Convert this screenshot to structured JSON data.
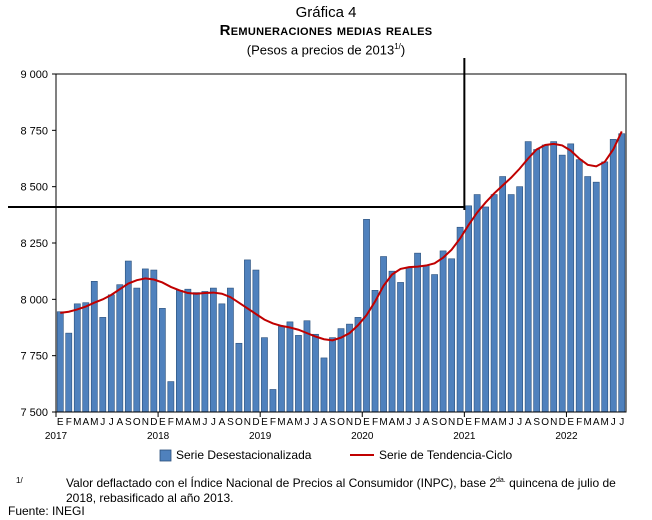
{
  "header": {
    "number": "Gráfica 4",
    "title": "Remuneraciones medias reales",
    "subtitle_main": "(Pesos a precios de 2013",
    "subtitle_sup": "1/",
    "subtitle_end": ")"
  },
  "footnote": {
    "mark": "1/",
    "text_a": "Valor deflactado con el Índice Nacional de Precios al Consumidor (INPC), base 2",
    "text_sup": "da.",
    "text_b": " quincena de julio de 2018, rebasificado al año 2013."
  },
  "source": "Fuente: INEGI",
  "chart_data": {
    "type": "bar",
    "ylim": [
      7500,
      9000
    ],
    "yticks": [
      7500,
      7750,
      8000,
      8250,
      8500,
      8750,
      9000
    ],
    "ytick_labels": [
      "7 500",
      "7 750",
      "8 000",
      "8 250",
      "8 500",
      "8 750",
      "9 000"
    ],
    "month_letters": [
      "E",
      "F",
      "M",
      "A",
      "M",
      "J",
      "J",
      "A",
      "S",
      "O",
      "N",
      "D",
      "E",
      "F",
      "M",
      "A",
      "M",
      "J",
      "J",
      "A",
      "S",
      "O",
      "N",
      "D",
      "E",
      "F",
      "M",
      "A",
      "M",
      "J",
      "J",
      "A",
      "S",
      "O",
      "N",
      "D",
      "E",
      "F",
      "M",
      "A",
      "M",
      "J",
      "J",
      "A",
      "S",
      "O",
      "N",
      "D",
      "E",
      "F",
      "M",
      "A",
      "M",
      "J",
      "J",
      "A",
      "S",
      "O",
      "N",
      "D",
      "E",
      "F",
      "M",
      "A",
      "M",
      "J",
      "J"
    ],
    "years": [
      {
        "label": "2017",
        "start_index": 0
      },
      {
        "label": "2018",
        "start_index": 12
      },
      {
        "label": "2019",
        "start_index": 24
      },
      {
        "label": "2020",
        "start_index": 36
      },
      {
        "label": "2021",
        "start_index": 48
      },
      {
        "label": "2022",
        "start_index": 60
      }
    ],
    "series": [
      {
        "name": "Serie Desestacionalizada",
        "kind": "bar",
        "color": "#4F81BD",
        "values": [
          7945,
          7850,
          7980,
          7985,
          8080,
          7920,
          8020,
          8065,
          8170,
          8050,
          8135,
          8130,
          7960,
          7635,
          8040,
          8045,
          8030,
          8035,
          8050,
          7980,
          8050,
          7805,
          8175,
          8130,
          7830,
          7600,
          7880,
          7900,
          7840,
          7905,
          7845,
          7740,
          7830,
          7870,
          7890,
          7920,
          8355,
          8040,
          8190,
          8125,
          8075,
          8140,
          8205,
          8150,
          8110,
          8215,
          8180,
          8320,
          8415,
          8465,
          8410,
          8465,
          8545,
          8465,
          8500,
          8700,
          8665,
          8685,
          8700,
          8640,
          8690,
          8620,
          8545,
          8520,
          8610,
          8710,
          8735
        ]
      },
      {
        "name": "Serie de Tendencia-Ciclo",
        "kind": "line",
        "color": "#C00000",
        "values": [
          7940,
          7945,
          7955,
          7968,
          7985,
          8000,
          8020,
          8045,
          8070,
          8085,
          8093,
          8088,
          8075,
          8055,
          8040,
          8028,
          8025,
          8028,
          8030,
          8025,
          8010,
          7985,
          7960,
          7935,
          7910,
          7893,
          7882,
          7875,
          7865,
          7850,
          7835,
          7823,
          7818,
          7830,
          7850,
          7885,
          7930,
          7990,
          8060,
          8110,
          8135,
          8143,
          8145,
          8150,
          8160,
          8185,
          8220,
          8270,
          8330,
          8385,
          8430,
          8470,
          8505,
          8540,
          8580,
          8625,
          8665,
          8685,
          8690,
          8683,
          8660,
          8625,
          8597,
          8590,
          8610,
          8665,
          8745
        ]
      }
    ],
    "frame_lines": [
      "vertical rule at 2021 (month E)",
      "horizontal rule at approx. 8 410 across first half"
    ],
    "legend_position": "bottom"
  }
}
